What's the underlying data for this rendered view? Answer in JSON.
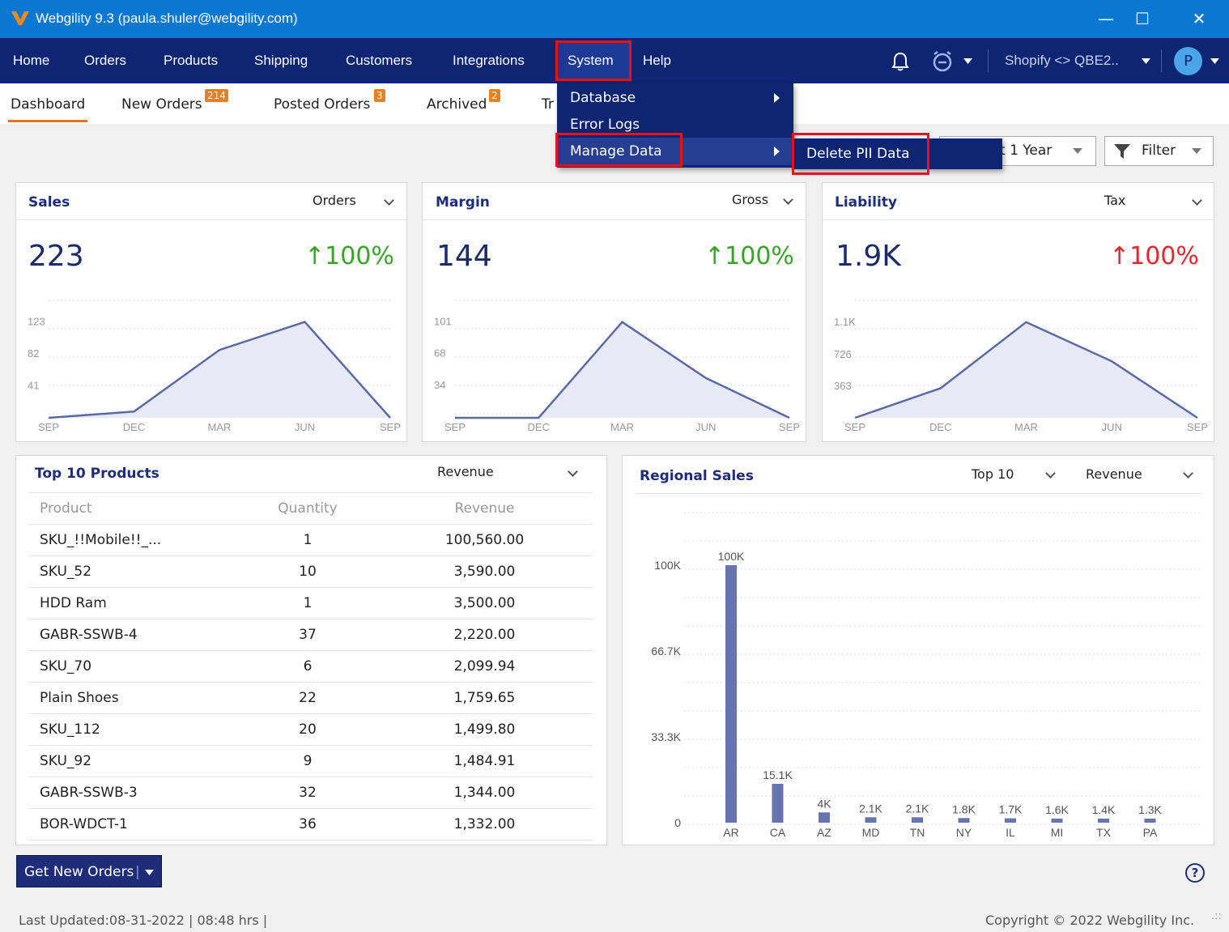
{
  "window": {
    "title": "Webgility 9.3 (paula.shuler@webgility.com)",
    "controls": {
      "minimize": "—",
      "maximize": "☐",
      "close": "✕"
    }
  },
  "menu": {
    "items": [
      "Home",
      "Orders",
      "Products",
      "Shipping",
      "Customers",
      "Integrations",
      "System",
      "Help"
    ],
    "store": "Shopify <> QBE2..",
    "avatar": "P"
  },
  "system_menu": {
    "items": [
      "Database",
      "Error Logs",
      "Manage Data"
    ],
    "submenu": "Delete PII Data"
  },
  "tabs": [
    {
      "label": "Dashboard"
    },
    {
      "label": "New Orders",
      "badge": "214"
    },
    {
      "label": "Posted Orders",
      "badge": "3"
    },
    {
      "label": "Archived",
      "badge": "2"
    },
    {
      "label": "Tr"
    }
  ],
  "controls": {
    "period": "t 1 Year",
    "filter": "Filter"
  },
  "cards": {
    "sales": {
      "title": "Sales",
      "select": "Orders",
      "value": "223",
      "change": "100%"
    },
    "margin": {
      "title": "Margin",
      "select": "Gross",
      "value": "144",
      "change": "100%"
    },
    "liability": {
      "title": "Liability",
      "select": "Tax",
      "value": "1.9K",
      "change": "100%"
    }
  },
  "chart_data": [
    {
      "type": "area",
      "x": [
        "SEP",
        "DEC",
        "MAR",
        "JUN",
        "SEP"
      ],
      "y": [
        0,
        8,
        87,
        123,
        0
      ],
      "yticks": [
        "123",
        "82",
        "41"
      ],
      "ylim": [
        0,
        135
      ]
    },
    {
      "type": "area",
      "x": [
        "SEP",
        "DEC",
        "MAR",
        "JUN",
        "SEP"
      ],
      "y": [
        0,
        0,
        101,
        42,
        0
      ],
      "yticks": [
        "101",
        "68",
        "34"
      ],
      "ylim": [
        0,
        111
      ]
    },
    {
      "type": "area",
      "x": [
        "SEP",
        "DEC",
        "MAR",
        "JUN",
        "SEP"
      ],
      "y": [
        0,
        340,
        1100,
        650,
        0
      ],
      "yticks": [
        "1.1K",
        "726",
        "363"
      ],
      "ylim": [
        0,
        1210
      ]
    },
    {
      "type": "bar",
      "title": "Regional Sales",
      "categories": [
        "AR",
        "CA",
        "AZ",
        "MD",
        "TN",
        "NY",
        "IL",
        "MI",
        "TX",
        "PA"
      ],
      "values": [
        100000,
        15100,
        4000,
        2100,
        2100,
        1800,
        1700,
        1600,
        1400,
        1300
      ],
      "data_labels": [
        "100K",
        "15.1K",
        "4K",
        "2.1K",
        "2.1K",
        "1.8K",
        "1.7K",
        "1.6K",
        "1.4K",
        "1.3K"
      ],
      "yticks": [
        "100K",
        "66.7K",
        "33.3K",
        "0"
      ],
      "ylim": [
        0,
        100000
      ]
    }
  ],
  "top_products": {
    "title": "Top 10 Products",
    "select": "Revenue",
    "columns": [
      "Product",
      "Quantity",
      "Revenue"
    ],
    "rows": [
      [
        "SKU_!!Mobile!!_...",
        "1",
        "100,560.00"
      ],
      [
        "SKU_52",
        "10",
        "3,590.00"
      ],
      [
        "HDD Ram",
        "1",
        "3,500.00"
      ],
      [
        "GABR-SSWB-4",
        "37",
        "2,220.00"
      ],
      [
        "SKU_70",
        "6",
        "2,099.94"
      ],
      [
        "Plain Shoes",
        "22",
        "1,759.65"
      ],
      [
        "SKU_112",
        "20",
        "1,499.80"
      ],
      [
        "SKU_92",
        "9",
        "1,484.91"
      ],
      [
        "GABR-SSWB-3",
        "32",
        "1,344.00"
      ],
      [
        "BOR-WDCT-1",
        "36",
        "1,332.00"
      ]
    ]
  },
  "regional": {
    "title": "Regional Sales",
    "select_top": "Top 10",
    "select_metric": "Revenue"
  },
  "footer": {
    "get_orders": "Get New Orders",
    "last_updated": "Last Updated:08-31-2022 | 08:48 hrs |",
    "copyright": "Copyright © 2022 Webgility Inc."
  },
  "colors": {
    "menu_bg": "#0d2572",
    "title_bg": "#0a77d3",
    "accent": "#e8741e",
    "line": "#5b6aa6",
    "bar": "#6674b0",
    "highlight": "#e0141a"
  }
}
